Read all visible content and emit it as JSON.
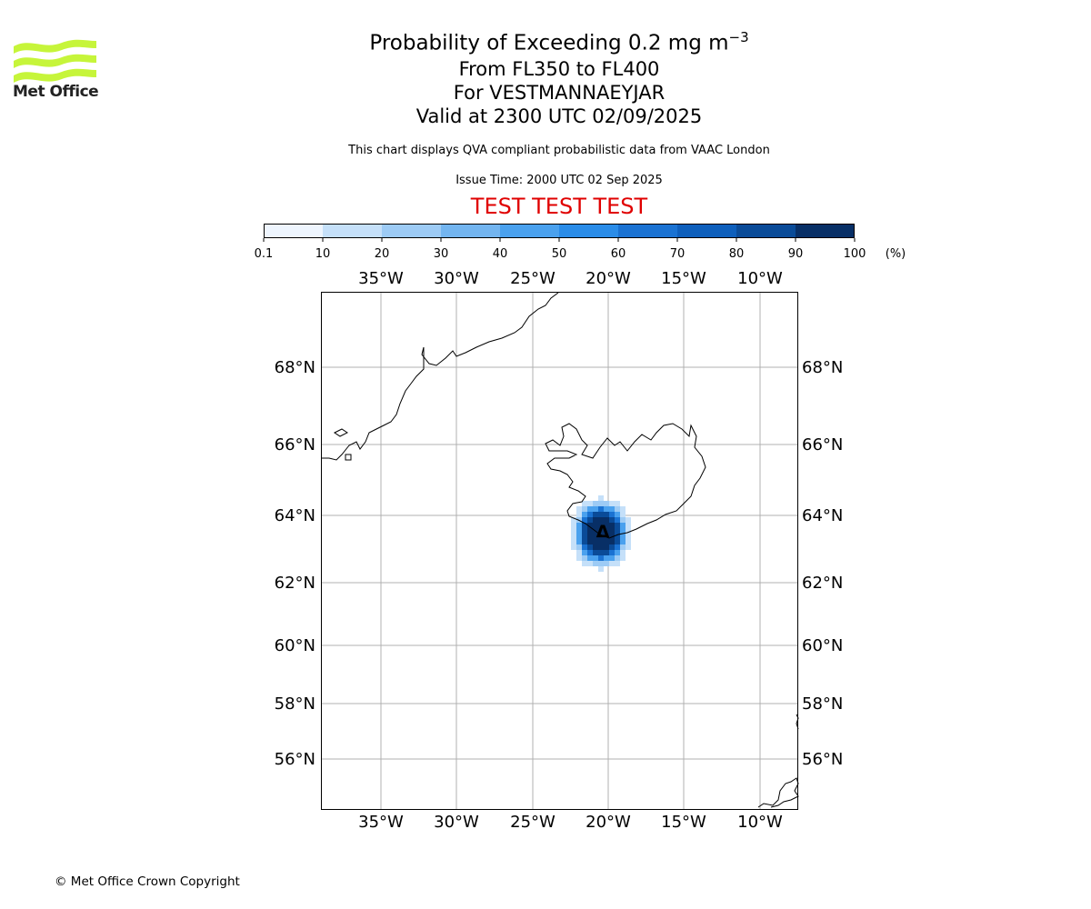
{
  "header": {
    "title_main": "Probability of Exceeding 0.2 mg m",
    "title_exponent": "−3",
    "title_levels": "From FL350 to FL400",
    "title_location": "For VESTMANNAEYJAR",
    "title_valid": "Valid at 2300 UTC 02/09/2025",
    "note": "This chart displays QVA compliant probabilistic data from VAAC London",
    "issue_time": "Issue Time: 2000 UTC 02 Sep 2025",
    "test_banner": "TEST TEST TEST"
  },
  "logo": {
    "text": "Met Office",
    "color": "#c6f53a"
  },
  "colorbar": {
    "ticks": [
      "0.1",
      "10",
      "20",
      "30",
      "40",
      "50",
      "60",
      "70",
      "80",
      "90",
      "100"
    ],
    "unit": "(%)",
    "colors": [
      "#eef5fe",
      "#c5e0f9",
      "#9dcbf5",
      "#73b5f0",
      "#4aa1ee",
      "#2a8ce8",
      "#1a72d2",
      "#0e5fbc",
      "#0a4b98",
      "#082f66"
    ]
  },
  "map": {
    "lon_labels": [
      "35°W",
      "30°W",
      "25°W",
      "20°W",
      "15°W",
      "10°W"
    ],
    "lat_labels": [
      "68°N",
      "66°N",
      "64°N",
      "62°N",
      "60°N",
      "58°N",
      "56°N"
    ],
    "volcano_symbol": "Δ",
    "gridlines": true,
    "coastline_color": "#000000"
  },
  "footer": {
    "copyright": "© Met Office Crown Copyright"
  }
}
